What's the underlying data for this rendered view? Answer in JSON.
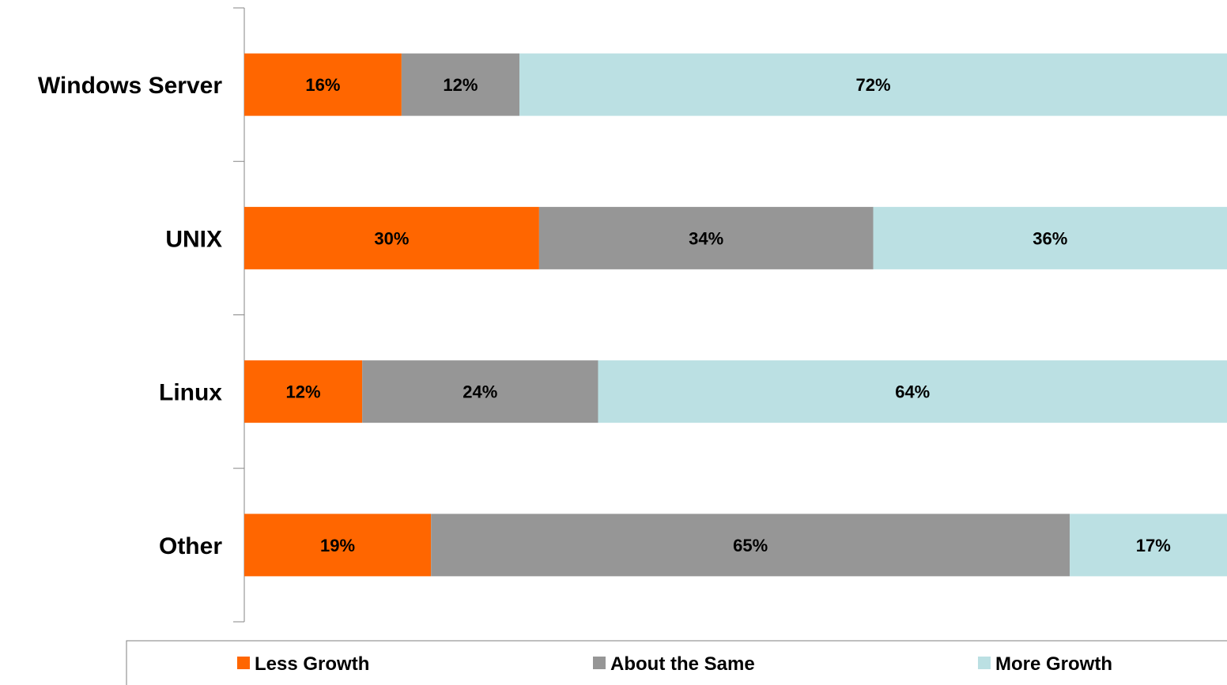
{
  "chart_data": {
    "type": "bar",
    "orientation": "horizontal",
    "stacked": true,
    "categories": [
      "Windows Server",
      "UNIX",
      "Linux",
      "Other"
    ],
    "series": [
      {
        "name": "Less Growth",
        "values": [
          16,
          30,
          12,
          19
        ],
        "labels": [
          "16%",
          "30%",
          "12%",
          "19%"
        ],
        "color": "#ff6600"
      },
      {
        "name": "About the Same",
        "values": [
          12,
          34,
          24,
          65
        ],
        "labels": [
          "12%",
          "34%",
          "24%",
          "65%"
        ],
        "color": "#969696"
      },
      {
        "name": "More Growth",
        "values": [
          72,
          36,
          64,
          17
        ],
        "labels": [
          "72%",
          "36%",
          "64%",
          "17%"
        ],
        "color": "#bbe0e3"
      }
    ],
    "xlim": [
      0,
      100
    ],
    "grid": false,
    "legend_position": "bottom"
  }
}
